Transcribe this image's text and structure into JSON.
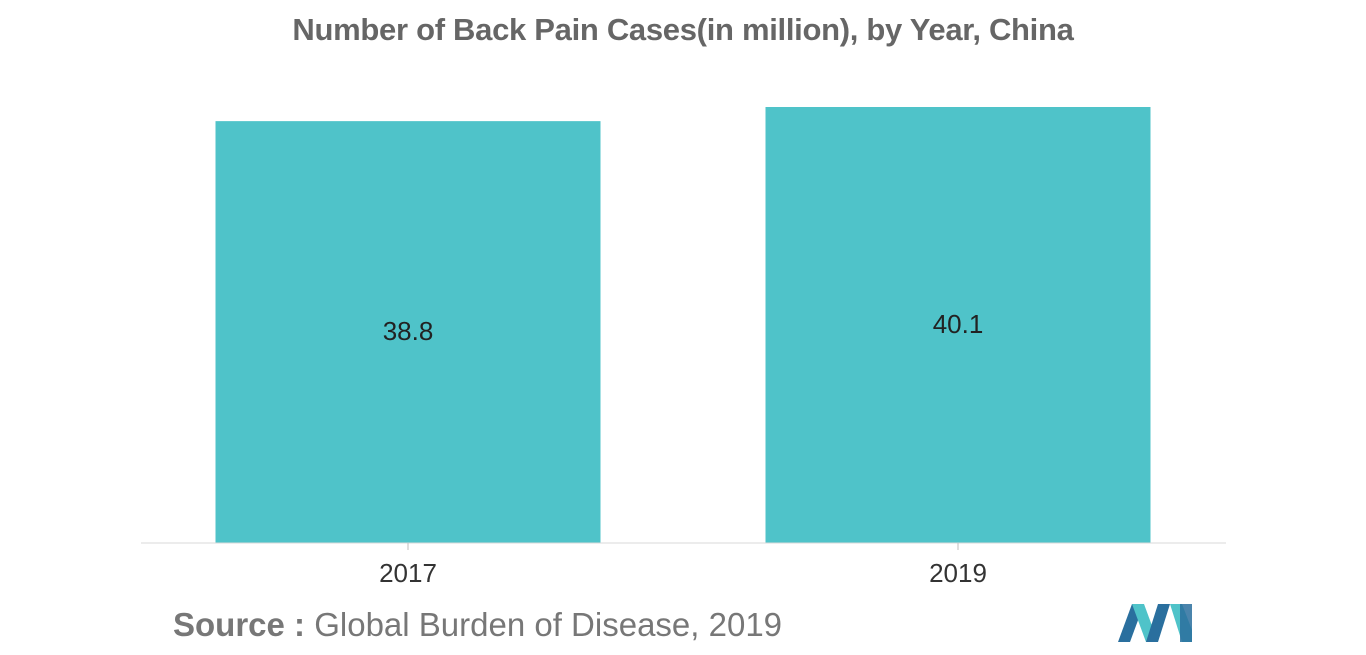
{
  "chart_data": {
    "type": "bar",
    "title": "Number of Back Pain Cases(in million), by Year, China",
    "categories": [
      "2017",
      "2019"
    ],
    "values": [
      38.8,
      40.1
    ],
    "data_labels": [
      "38.8",
      "40.1"
    ],
    "xlabel": "",
    "ylabel": "",
    "ylim": [
      0,
      40.1
    ],
    "grid": false,
    "legend": "none",
    "bar_color": "#4fc3c9"
  },
  "source": {
    "label": "Source :",
    "text": "Global Burden of Disease, 2019"
  },
  "logo": {
    "icon": "mordor-intelligence-logo",
    "colors": [
      "#2a6f9e",
      "#4fc3c9"
    ]
  }
}
